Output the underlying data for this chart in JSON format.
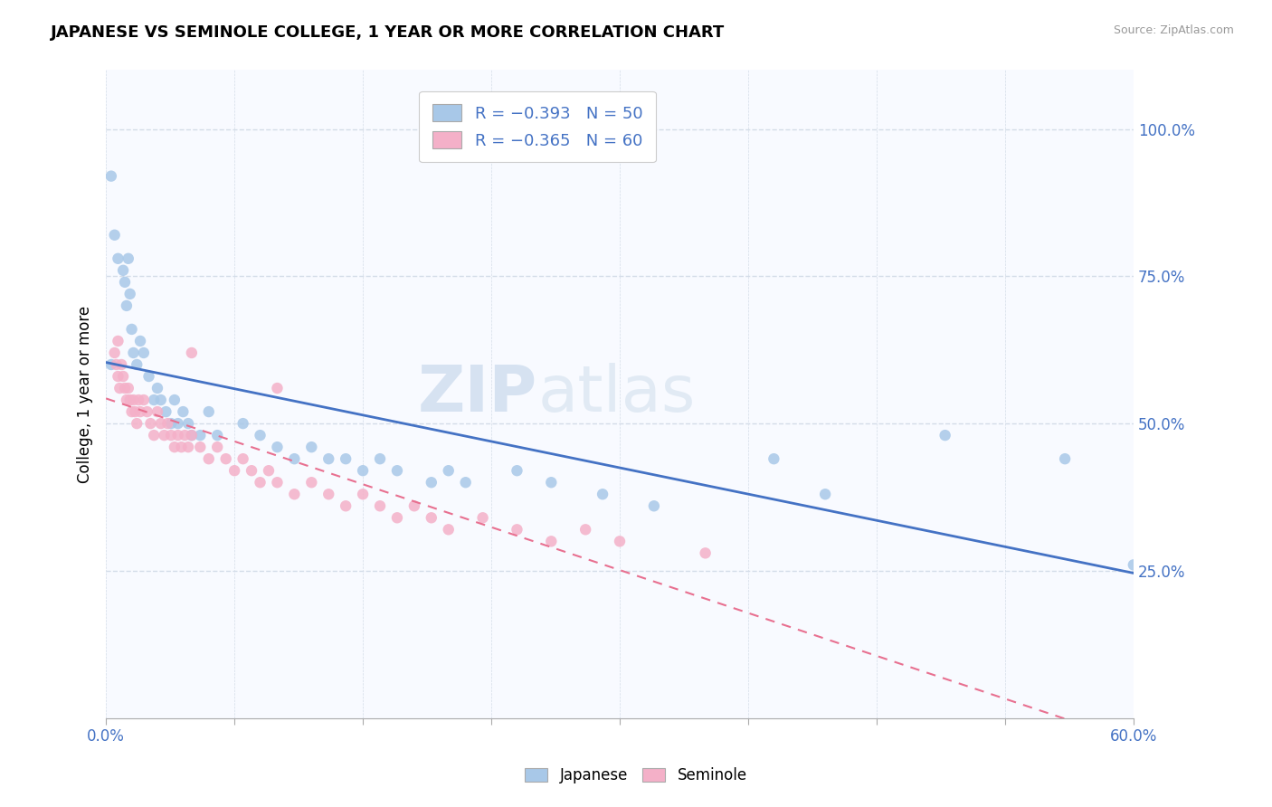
{
  "title": "JAPANESE VS SEMINOLE COLLEGE, 1 YEAR OR MORE CORRELATION CHART",
  "source_text": "Source: ZipAtlas.com",
  "ylabel": "College, 1 year or more",
  "ytick_values": [
    0.25,
    0.5,
    0.75,
    1.0
  ],
  "xmin": 0.0,
  "xmax": 0.6,
  "ymin": 0.0,
  "ymax": 1.1,
  "legend_line1": "R = −0.393   N = 50",
  "legend_line2": "R = −0.365   N = 60",
  "watermark_top": "ZIP",
  "watermark_bot": "atlas",
  "japanese_color": "#a8c8e8",
  "seminole_color": "#f4b0c8",
  "japanese_line_color": "#4472c4",
  "seminole_line_color": "#e87090",
  "japanese_points": [
    [
      0.003,
      0.92
    ],
    [
      0.005,
      0.82
    ],
    [
      0.007,
      0.78
    ],
    [
      0.01,
      0.76
    ],
    [
      0.011,
      0.74
    ],
    [
      0.012,
      0.7
    ],
    [
      0.013,
      0.78
    ],
    [
      0.014,
      0.72
    ],
    [
      0.015,
      0.66
    ],
    [
      0.016,
      0.62
    ],
    [
      0.018,
      0.6
    ],
    [
      0.02,
      0.64
    ],
    [
      0.022,
      0.62
    ],
    [
      0.025,
      0.58
    ],
    [
      0.028,
      0.54
    ],
    [
      0.03,
      0.56
    ],
    [
      0.032,
      0.54
    ],
    [
      0.035,
      0.52
    ],
    [
      0.038,
      0.5
    ],
    [
      0.04,
      0.54
    ],
    [
      0.042,
      0.5
    ],
    [
      0.045,
      0.52
    ],
    [
      0.048,
      0.5
    ],
    [
      0.05,
      0.48
    ],
    [
      0.055,
      0.48
    ],
    [
      0.06,
      0.52
    ],
    [
      0.065,
      0.48
    ],
    [
      0.08,
      0.5
    ],
    [
      0.09,
      0.48
    ],
    [
      0.1,
      0.46
    ],
    [
      0.11,
      0.44
    ],
    [
      0.12,
      0.46
    ],
    [
      0.13,
      0.44
    ],
    [
      0.14,
      0.44
    ],
    [
      0.15,
      0.42
    ],
    [
      0.16,
      0.44
    ],
    [
      0.17,
      0.42
    ],
    [
      0.19,
      0.4
    ],
    [
      0.2,
      0.42
    ],
    [
      0.21,
      0.4
    ],
    [
      0.24,
      0.42
    ],
    [
      0.26,
      0.4
    ],
    [
      0.29,
      0.38
    ],
    [
      0.32,
      0.36
    ],
    [
      0.39,
      0.44
    ],
    [
      0.42,
      0.38
    ],
    [
      0.49,
      0.48
    ],
    [
      0.56,
      0.44
    ],
    [
      0.6,
      0.26
    ],
    [
      0.003,
      0.6
    ]
  ],
  "seminole_points": [
    [
      0.005,
      0.62
    ],
    [
      0.006,
      0.6
    ],
    [
      0.007,
      0.58
    ],
    [
      0.008,
      0.56
    ],
    [
      0.009,
      0.6
    ],
    [
      0.01,
      0.58
    ],
    [
      0.011,
      0.56
    ],
    [
      0.012,
      0.54
    ],
    [
      0.013,
      0.56
    ],
    [
      0.014,
      0.54
    ],
    [
      0.015,
      0.52
    ],
    [
      0.016,
      0.54
    ],
    [
      0.017,
      0.52
    ],
    [
      0.018,
      0.5
    ],
    [
      0.019,
      0.54
    ],
    [
      0.02,
      0.52
    ],
    [
      0.022,
      0.54
    ],
    [
      0.024,
      0.52
    ],
    [
      0.026,
      0.5
    ],
    [
      0.028,
      0.48
    ],
    [
      0.03,
      0.52
    ],
    [
      0.032,
      0.5
    ],
    [
      0.034,
      0.48
    ],
    [
      0.036,
      0.5
    ],
    [
      0.038,
      0.48
    ],
    [
      0.04,
      0.46
    ],
    [
      0.042,
      0.48
    ],
    [
      0.044,
      0.46
    ],
    [
      0.046,
      0.48
    ],
    [
      0.048,
      0.46
    ],
    [
      0.05,
      0.48
    ],
    [
      0.055,
      0.46
    ],
    [
      0.06,
      0.44
    ],
    [
      0.065,
      0.46
    ],
    [
      0.07,
      0.44
    ],
    [
      0.075,
      0.42
    ],
    [
      0.08,
      0.44
    ],
    [
      0.085,
      0.42
    ],
    [
      0.09,
      0.4
    ],
    [
      0.095,
      0.42
    ],
    [
      0.1,
      0.4
    ],
    [
      0.11,
      0.38
    ],
    [
      0.12,
      0.4
    ],
    [
      0.13,
      0.38
    ],
    [
      0.14,
      0.36
    ],
    [
      0.15,
      0.38
    ],
    [
      0.16,
      0.36
    ],
    [
      0.17,
      0.34
    ],
    [
      0.18,
      0.36
    ],
    [
      0.19,
      0.34
    ],
    [
      0.2,
      0.32
    ],
    [
      0.22,
      0.34
    ],
    [
      0.24,
      0.32
    ],
    [
      0.26,
      0.3
    ],
    [
      0.28,
      0.32
    ],
    [
      0.3,
      0.3
    ],
    [
      0.35,
      0.28
    ],
    [
      0.007,
      0.64
    ],
    [
      0.05,
      0.62
    ],
    [
      0.1,
      0.56
    ]
  ],
  "background_color": "#ffffff",
  "grid_color": "#d4dce8",
  "plot_bg_color": "#f8faff"
}
